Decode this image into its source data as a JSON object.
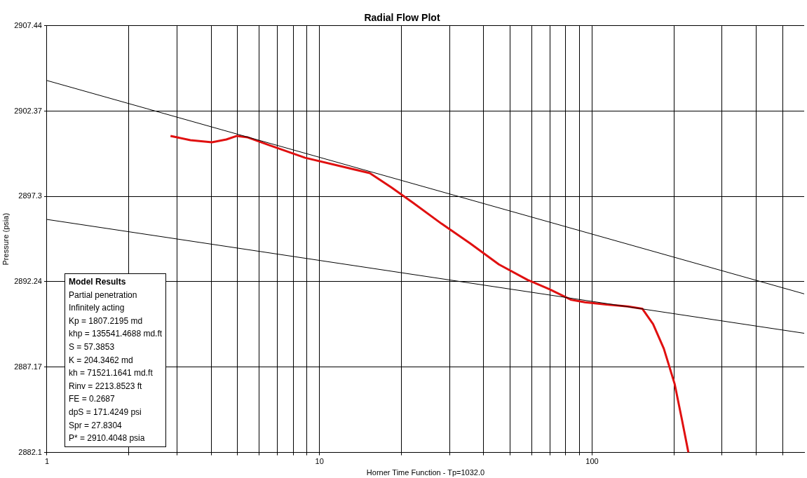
{
  "chart_data": {
    "type": "line",
    "title": "Radial Flow Plot",
    "xlabel": "Horner Time Function - Tp=1032.0",
    "ylabel": "Pressure (psia)",
    "log": "x",
    "grid": true,
    "legend": false,
    "marker": "none",
    "line_style": "solid",
    "xlim": [
      1,
      600
    ],
    "xticks": [
      1,
      {
        "value": 2,
        "label": null
      },
      {
        "value": 3,
        "label": null
      },
      {
        "value": 4,
        "label": null
      },
      {
        "value": 5,
        "label": null
      },
      {
        "value": 6,
        "label": null
      },
      {
        "value": 7,
        "label": null
      },
      {
        "value": 8,
        "label": null
      },
      {
        "value": 9,
        "label": null
      },
      10,
      {
        "value": 20,
        "label": null
      },
      {
        "value": 30,
        "label": null
      },
      {
        "value": 40,
        "label": null
      },
      {
        "value": 50,
        "label": null
      },
      {
        "value": 60,
        "label": null
      },
      {
        "value": 70,
        "label": null
      },
      {
        "value": 80,
        "label": null
      },
      {
        "value": 90,
        "label": null
      },
      100,
      {
        "value": 200,
        "label": null
      },
      {
        "value": 300,
        "label": null
      },
      {
        "value": 400,
        "label": null
      },
      {
        "value": 500,
        "label": null
      }
    ],
    "ylim": [
      2882.1,
      2907.44
    ],
    "yticks": [
      2882.1,
      2887.17,
      2892.24,
      2897.3,
      2902.37,
      2907.44
    ],
    "series": [
      {
        "color": "#000000",
        "x": [
          1,
          600
        ],
        "values": [
          2904.19,
          2891.52
        ]
      },
      {
        "color": "#000000",
        "x": [
          1,
          600
        ],
        "values": [
          2895.94,
          2889.18
        ]
      },
      {
        "color": "#e01010",
        "x": [
          2.84,
          3.36,
          4.03,
          4.55,
          4.98,
          5.46,
          6.54,
          8.86,
          11.99,
          15.29,
          18.33,
          21.98,
          28.02,
          35.7,
          45.5,
          58.0,
          69.5,
          83.4,
          94.1,
          112.9,
          135.4,
          152.8,
          167.4,
          183.3,
          200.8,
          213.3,
          225.6
        ],
        "values": [
          2900.9,
          2900.65,
          2900.52,
          2900.69,
          2900.9,
          2900.81,
          2900.35,
          2899.6,
          2899.1,
          2898.69,
          2897.85,
          2896.94,
          2895.69,
          2894.52,
          2893.27,
          2892.35,
          2891.81,
          2891.18,
          2891.02,
          2890.89,
          2890.77,
          2890.64,
          2889.73,
          2888.27,
          2886.18,
          2884.1,
          2882.1
        ]
      }
    ],
    "annotations": [
      "Model Results",
      "Partial penetration",
      "Infinitely acting",
      "Kp = 1807.2195 md",
      "khp = 135541.4688 md.ft",
      "S = 57.3853",
      "K = 204.3462 md",
      "kh = 71521.1641 md.ft",
      "Rinv = 2213.8523 ft",
      "FE = 0.2687",
      "dpS = 171.4249 psi",
      "Spr = 27.8304",
      "P* = 2910.4048 psia"
    ]
  }
}
